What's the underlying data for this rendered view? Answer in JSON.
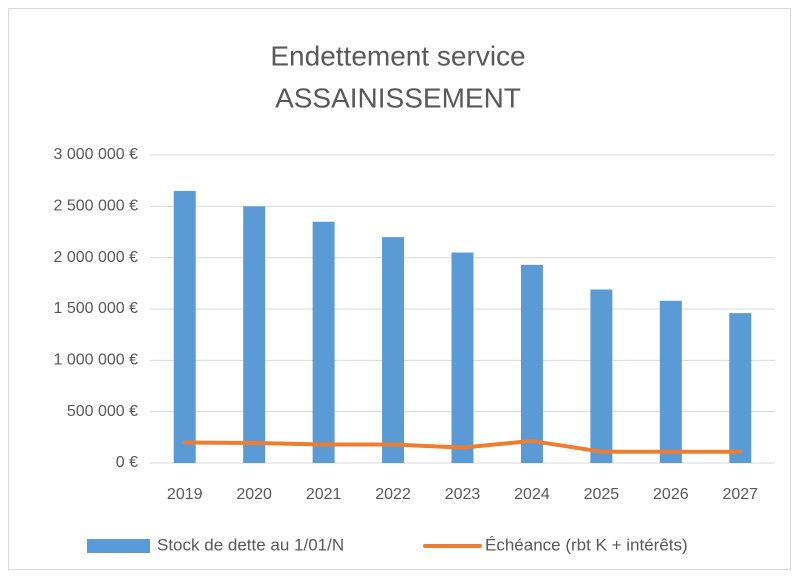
{
  "chart_data": {
    "type": "bar",
    "title": [
      "Endettement service",
      "ASSAINISSEMENT"
    ],
    "categories": [
      "2019",
      "2020",
      "2021",
      "2022",
      "2023",
      "2024",
      "2025",
      "2026",
      "2027"
    ],
    "series": [
      {
        "name": "Stock de dette au 1/01/N",
        "type": "bar",
        "color": "#5b9bd5",
        "values": [
          2650000,
          2500000,
          2350000,
          2200000,
          2050000,
          1930000,
          1690000,
          1580000,
          1460000
        ]
      },
      {
        "name": "Échéance (rbt K + intérêts)",
        "type": "line",
        "color": "#ed7d31",
        "values": [
          200000,
          195000,
          180000,
          180000,
          150000,
          215000,
          110000,
          110000,
          110000
        ]
      }
    ],
    "ylim": [
      0,
      3000000
    ],
    "yticks": [
      {
        "value": 0,
        "label": "0 €"
      },
      {
        "value": 500000,
        "label": "500 000 €"
      },
      {
        "value": 1000000,
        "label": "1 000 000 €"
      },
      {
        "value": 1500000,
        "label": "1 500 000 €"
      },
      {
        "value": 2000000,
        "label": "2 000 000 €"
      },
      {
        "value": 2500000,
        "label": "2 500 000 €"
      },
      {
        "value": 3000000,
        "label": "3 000 000 €"
      }
    ],
    "grid": true,
    "legend": "bottom"
  }
}
